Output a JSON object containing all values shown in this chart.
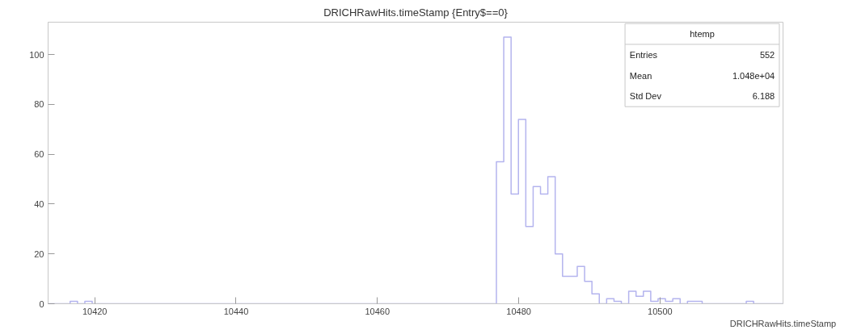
{
  "chart_data": {
    "type": "histogram",
    "title": "DRICHRawHits.timeStamp {Entry$==0}",
    "xlabel": "DRICHRawHits.timeStamp",
    "bins": [
      10413.4,
      10414.44,
      10415.48,
      10416.52,
      10417.56,
      10418.6,
      10419.64,
      10420.68,
      10421.72,
      10422.76,
      10423.8,
      10424.84,
      10425.88,
      10426.92,
      10427.96,
      10429.0,
      10430.04,
      10431.08,
      10432.12,
      10433.16,
      10434.2,
      10435.24,
      10436.28,
      10437.32,
      10438.36,
      10439.4,
      10440.44,
      10441.48,
      10442.52,
      10443.56,
      10444.6,
      10445.64,
      10446.68,
      10447.72,
      10448.76,
      10449.8,
      10450.84,
      10451.88,
      10452.92,
      10453.96,
      10455.0,
      10456.04,
      10457.08,
      10458.12,
      10459.16,
      10460.2,
      10461.24,
      10462.28,
      10463.32,
      10464.36,
      10465.4,
      10466.44,
      10467.48,
      10468.52,
      10469.56,
      10470.6,
      10471.64,
      10472.68,
      10473.72,
      10474.76,
      10475.8,
      10476.84,
      10477.88,
      10478.92,
      10479.96,
      10481.0,
      10482.04,
      10483.08,
      10484.12,
      10485.16,
      10486.2,
      10487.24,
      10488.28,
      10489.32,
      10490.36,
      10491.4,
      10492.44,
      10493.48,
      10494.52,
      10495.56,
      10496.6,
      10497.64,
      10498.68,
      10499.72,
      10500.76,
      10501.8,
      10502.84,
      10503.88,
      10504.92,
      10505.96,
      10507.0,
      10508.04,
      10509.08,
      10510.12,
      10511.16,
      10512.2,
      10513.24,
      10514.28,
      10515.32,
      10516.36,
      10517.4
    ],
    "values": [
      0,
      0,
      0,
      1,
      0,
      1,
      0,
      0,
      0,
      0,
      0,
      0,
      0,
      0,
      0,
      0,
      0,
      0,
      0,
      0,
      0,
      0,
      0,
      0,
      0,
      0,
      0,
      0,
      0,
      0,
      0,
      0,
      0,
      0,
      0,
      0,
      0,
      0,
      0,
      0,
      0,
      0,
      0,
      0,
      0,
      0,
      0,
      0,
      0,
      0,
      0,
      0,
      0,
      0,
      0,
      0,
      0,
      0,
      0,
      0,
      0,
      57,
      107,
      44,
      74,
      31,
      47,
      44,
      51,
      20,
      11,
      11,
      15,
      9,
      4,
      0,
      2,
      1,
      0,
      5,
      3,
      5,
      1,
      2,
      1,
      2,
      0,
      1,
      1,
      0,
      0,
      0,
      0,
      0,
      0,
      1,
      0,
      0,
      0,
      0
    ],
    "color": "#b4b4ee",
    "xlim": [
      10413.4,
      10517.4
    ],
    "ylim": [
      0,
      113
    ],
    "xticks": [
      10420,
      10440,
      10460,
      10480,
      10500
    ],
    "yticks": [
      0,
      20,
      40,
      60,
      80,
      100
    ],
    "grid": false,
    "annotations": [
      "htemp",
      "Entries",
      "552",
      "Mean",
      "1.048e+04",
      "Std Dev",
      "6.188"
    ]
  }
}
